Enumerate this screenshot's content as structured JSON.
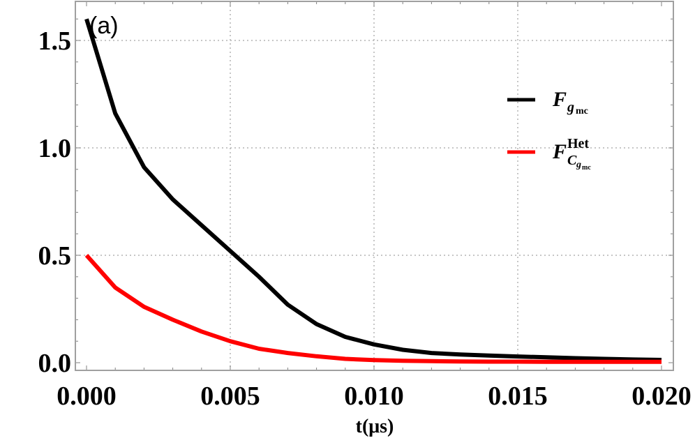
{
  "chart_data": {
    "type": "line",
    "title": "",
    "panel_label": "(a)",
    "xlabel": "t(μs)",
    "ylabel": "",
    "xlim": [
      0.0,
      0.02
    ],
    "ylim": [
      0.0,
      1.62
    ],
    "x_ticks": [
      "0.000",
      "0.005",
      "0.010",
      "0.015",
      "0.020"
    ],
    "y_ticks": [
      "0.0",
      "0.5",
      "1.0",
      "1.5"
    ],
    "grid": "dotted at major ticks",
    "legend_position": "upper right (inside)",
    "x": [
      0.0,
      0.001,
      0.002,
      0.003,
      0.004,
      0.005,
      0.006,
      0.007,
      0.008,
      0.009,
      0.01,
      0.011,
      0.012,
      0.013,
      0.014,
      0.015,
      0.016,
      0.017,
      0.018,
      0.019,
      0.02
    ],
    "series": [
      {
        "name": "F_{g_mc}",
        "color": "#000000",
        "values": [
          1.6,
          1.16,
          0.91,
          0.76,
          0.64,
          0.52,
          0.4,
          0.27,
          0.18,
          0.12,
          0.085,
          0.06,
          0.045,
          0.038,
          0.033,
          0.029,
          0.025,
          0.021,
          0.018,
          0.015,
          0.013
        ]
      },
      {
        "name": "F^{Het}_{C_{g_mc}}",
        "color": "#ff0000",
        "values": [
          0.5,
          0.35,
          0.26,
          0.2,
          0.145,
          0.1,
          0.065,
          0.045,
          0.03,
          0.018,
          0.012,
          0.009,
          0.007,
          0.006,
          0.005,
          0.005,
          0.004,
          0.004,
          0.004,
          0.004,
          0.004
        ]
      }
    ]
  },
  "legend": {
    "items": [
      {
        "main": "F",
        "sub": "g",
        "subsub": "mc",
        "sup": "",
        "color": "#000000"
      },
      {
        "main": "F",
        "sub": "C",
        "subsub": "g",
        "subsubsub": "mc",
        "sup": "Het",
        "color": "#ff0000"
      }
    ]
  }
}
